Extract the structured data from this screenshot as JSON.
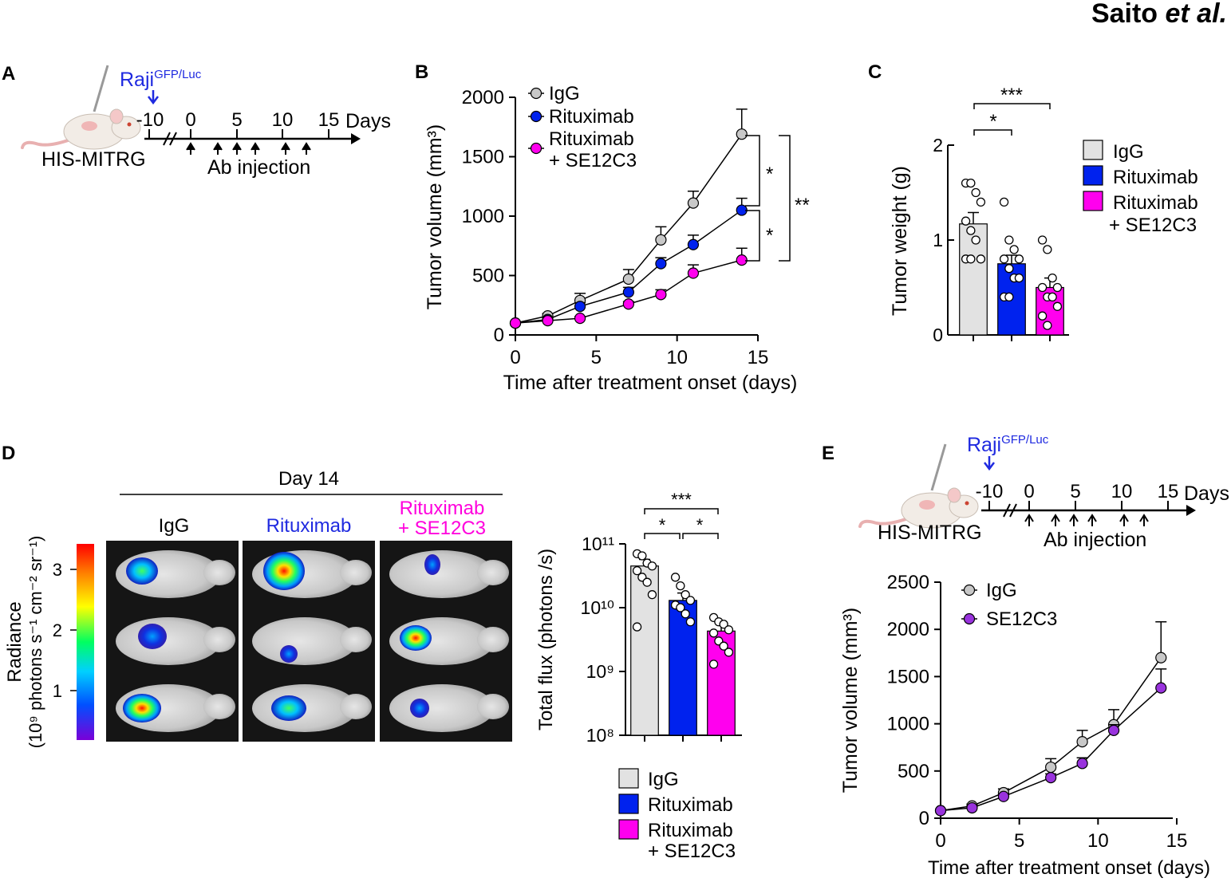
{
  "header": {
    "author": "Saito",
    "etal": " et al."
  },
  "colors": {
    "igg": "#c8c8c8",
    "rituximab": "#0022ee",
    "combo": "#ff00ee",
    "se12c3": "#9933dd",
    "raji": "#1f2ae0",
    "combo_text": "#ff00dd"
  },
  "panelA": {
    "label": "A",
    "raji": "Raji",
    "raji_sup": "GFP/Luc",
    "mouse_label": "HIS-MITRG",
    "days_label": "Days",
    "ticks": [
      "-10",
      "0",
      "5",
      "10",
      "15"
    ],
    "injection_label": "Ab injection",
    "injection_days": [
      0,
      3,
      5,
      7,
      10,
      12
    ]
  },
  "panelB": {
    "label": "B",
    "legend": [
      "IgG",
      "Rituximab",
      "Rituximab",
      "+ SE12C3"
    ],
    "sig": [
      "*",
      "*",
      "**"
    ]
  },
  "panelC": {
    "label": "C",
    "legend": [
      "IgG",
      "Rituximab",
      "Rituximab",
      "+ SE12C3"
    ],
    "sig": [
      "*",
      "***"
    ]
  },
  "panelD": {
    "label": "D",
    "day_label": "Day 14",
    "groups": [
      "IgG",
      "Rituximab",
      "Rituximab",
      "+ SE12C3"
    ],
    "colorbar_label_1": "Radiance",
    "colorbar_label_2": "(10⁹ photons s⁻¹ cm⁻² sr⁻¹)",
    "colorbar_ticks": [
      "3",
      "2",
      "1"
    ],
    "legend": [
      "IgG",
      "Rituximab",
      "Rituximab",
      "+ SE12C3"
    ],
    "sig": [
      "***",
      "*",
      "*"
    ]
  },
  "panelE": {
    "label": "E",
    "raji": "Raji",
    "raji_sup": "GFP/Luc",
    "mouse_label": "HIS-MITRG",
    "days_label": "Days",
    "ticks": [
      "-10",
      "0",
      "5",
      "10",
      "15"
    ],
    "injection_label": "Ab injection",
    "legend": [
      "IgG",
      "SE12C3"
    ]
  },
  "chart_data": [
    {
      "id": "B",
      "type": "line",
      "xlabel": "Time after treatment onset (days)",
      "ylabel": "Tumor volume (mm³)",
      "xlim": [
        0,
        15
      ],
      "ylim": [
        0,
        2000
      ],
      "xticks": [
        0,
        5,
        10,
        15
      ],
      "yticks": [
        0,
        500,
        1000,
        1500,
        2000
      ],
      "x": [
        0,
        2,
        4,
        7,
        9,
        11,
        14
      ],
      "series": [
        {
          "name": "IgG",
          "values": [
            100,
            160,
            290,
            470,
            800,
            1110,
            1690
          ],
          "errors": [
            0,
            20,
            60,
            80,
            110,
            100,
            210
          ]
        },
        {
          "name": "Rituximab",
          "values": [
            100,
            130,
            240,
            360,
            600,
            760,
            1050
          ],
          "errors": [
            0,
            15,
            30,
            40,
            50,
            80,
            100
          ]
        },
        {
          "name": "Rituximab + SE12C3",
          "values": [
            100,
            120,
            140,
            260,
            340,
            520,
            630
          ],
          "errors": [
            0,
            10,
            15,
            20,
            40,
            70,
            100
          ]
        }
      ]
    },
    {
      "id": "C",
      "type": "bar",
      "ylabel": "Tumor weight (g)",
      "ylim": [
        0,
        2
      ],
      "yticks": [
        0,
        1,
        2
      ],
      "categories": [
        "IgG",
        "Rituximab",
        "Rituximab + SE12C3"
      ],
      "values": [
        1.17,
        0.75,
        0.5
      ],
      "errors": [
        0.12,
        0.09,
        0.1
      ],
      "points": [
        [
          1.6,
          1.6,
          1.5,
          1.4,
          1.2,
          1.1,
          1.0,
          0.8,
          0.8,
          0.8
        ],
        [
          1.4,
          1.0,
          0.9,
          0.8,
          0.8,
          0.7,
          0.6,
          0.6,
          0.4,
          0.4
        ],
        [
          1.0,
          0.9,
          0.6,
          0.5,
          0.5,
          0.4,
          0.4,
          0.3,
          0.2,
          0.1
        ]
      ]
    },
    {
      "id": "D",
      "type": "bar",
      "ylabel": "Total flux (photons /s)",
      "yscale": "log",
      "ylim": [
        100000000.0,
        100000000000.0
      ],
      "ytick_labels": [
        "10¹¹",
        "10¹⁰",
        "10⁹",
        "10⁸"
      ],
      "categories": [
        "IgG",
        "Rituximab",
        "Rituximab + SE12C3"
      ],
      "values": [
        45000000000.0,
        13000000000.0,
        4300000000.0
      ],
      "errors": [
        12000000000.0,
        4000000000.0,
        1300000000.0
      ],
      "points": [
        [
          70000000000.0,
          65000000000.0,
          50000000000.0,
          45000000000.0,
          38000000000.0,
          30000000000.0,
          25000000000.0,
          16000000000.0,
          5000000000.0
        ],
        [
          30000000000.0,
          22000000000.0,
          16000000000.0,
          13000000000.0,
          11000000000.0,
          10000000000.0,
          8000000000.0,
          6000000000.0
        ],
        [
          7000000000.0,
          6000000000.0,
          5500000000.0,
          4500000000.0,
          4000000000.0,
          3000000000.0,
          2500000000.0,
          2000000000.0,
          1300000000.0
        ]
      ]
    },
    {
      "id": "E",
      "type": "line",
      "xlabel": "Time after treatment onset (days)",
      "ylabel": "Tumor volume (mm³)",
      "xlim": [
        0,
        15
      ],
      "ylim": [
        0,
        2500
      ],
      "xticks": [
        0,
        5,
        10,
        15
      ],
      "yticks": [
        0,
        500,
        1000,
        1500,
        2000,
        2500
      ],
      "x": [
        0,
        2,
        4,
        7,
        9,
        11,
        14
      ],
      "series": [
        {
          "name": "IgG",
          "values": [
            80,
            130,
            270,
            540,
            810,
            990,
            1700
          ],
          "errors": [
            0,
            20,
            40,
            90,
            120,
            160,
            380
          ]
        },
        {
          "name": "SE12C3",
          "values": [
            80,
            110,
            230,
            430,
            580,
            930,
            1380
          ],
          "errors": [
            0,
            15,
            30,
            40,
            60,
            60,
            200
          ]
        }
      ]
    }
  ]
}
